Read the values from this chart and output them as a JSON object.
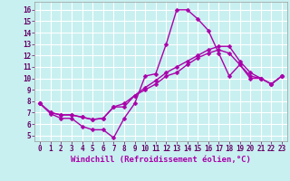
{
  "xlabel": "Windchill (Refroidissement éolien,°C)",
  "xlim": [
    -0.5,
    23.5
  ],
  "ylim": [
    4.5,
    16.7
  ],
  "xticks": [
    0,
    1,
    2,
    3,
    4,
    5,
    6,
    7,
    8,
    9,
    10,
    11,
    12,
    13,
    14,
    15,
    16,
    17,
    18,
    19,
    20,
    21,
    22,
    23
  ],
  "yticks": [
    5,
    6,
    7,
    8,
    9,
    10,
    11,
    12,
    13,
    14,
    15,
    16
  ],
  "background_color": "#c8f0f0",
  "grid_color": "#ffffff",
  "line_color": "#aa00aa",
  "line1": [
    7.8,
    6.9,
    6.5,
    6.5,
    5.8,
    5.5,
    5.5,
    4.8,
    6.5,
    7.8,
    10.2,
    10.4,
    13.0,
    16.0,
    16.0,
    15.2,
    14.2,
    12.2,
    10.2,
    11.2,
    10.0,
    10.0,
    9.5,
    10.2
  ],
  "line2": [
    7.8,
    7.0,
    6.8,
    6.8,
    6.6,
    6.4,
    6.5,
    7.5,
    7.5,
    8.5,
    9.0,
    9.5,
    10.2,
    10.5,
    11.2,
    11.8,
    12.2,
    12.5,
    12.2,
    11.2,
    10.2,
    10.0,
    9.5,
    10.2
  ],
  "line3": [
    7.8,
    7.0,
    6.8,
    6.8,
    6.6,
    6.4,
    6.5,
    7.5,
    7.8,
    8.5,
    9.2,
    9.8,
    10.5,
    11.0,
    11.5,
    12.0,
    12.5,
    12.8,
    12.8,
    11.5,
    10.5,
    10.0,
    9.5,
    10.2
  ],
  "marker": "D",
  "marker_size": 2.5,
  "linewidth": 1.0,
  "tick_fontsize": 5.5,
  "label_fontsize": 6.5
}
